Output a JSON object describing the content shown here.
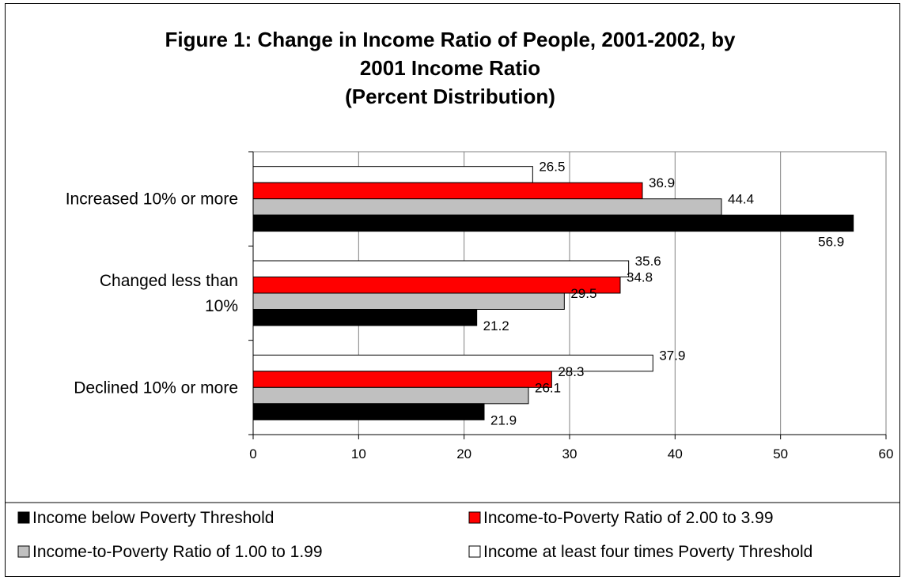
{
  "chart_data": {
    "type": "bar",
    "orientation": "horizontal",
    "title_lines": [
      "Figure 1: Change in Income Ratio of People, 2001-2002, by",
      "2001 Income Ratio"
    ],
    "subtitle": "(Percent Distribution)",
    "categories": [
      [
        "Increased 10% or more"
      ],
      [
        "Changed less than",
        "10%"
      ],
      [
        "Declined 10% or more"
      ]
    ],
    "series": [
      {
        "name": "Income at least four times Poverty Threshold",
        "color": "#ffffff",
        "values": [
          26.5,
          35.6,
          37.9
        ]
      },
      {
        "name": "Income-to-Poverty Ratio of 2.00 to 3.99",
        "color": "#ff0000",
        "values": [
          36.9,
          34.8,
          28.3
        ]
      },
      {
        "name": "Income-to-Poverty Ratio of 1.00 to 1.99",
        "color": "#c0c0c0",
        "values": [
          44.4,
          29.5,
          26.1
        ]
      },
      {
        "name": "Income below Poverty Threshold",
        "color": "#000000",
        "values": [
          56.9,
          21.2,
          21.9
        ]
      }
    ],
    "legend_order": [
      3,
      2,
      1,
      0
    ],
    "xlim": [
      0,
      60
    ],
    "xticks": [
      0,
      10,
      20,
      30,
      40,
      50,
      60
    ],
    "grid": true,
    "legend_position": "bottom"
  }
}
